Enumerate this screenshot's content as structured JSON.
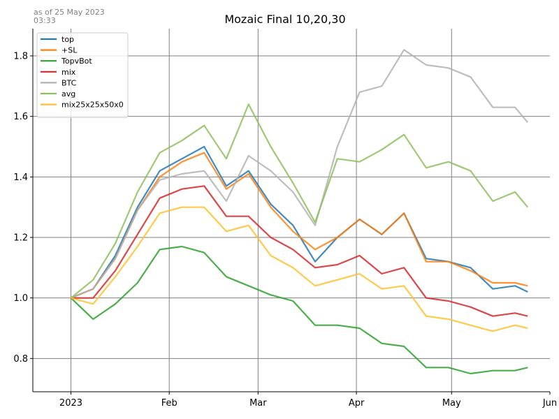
{
  "header": {
    "asof_line1": "as of 25 May 2023",
    "asof_line2": "03:33"
  },
  "chart_data": {
    "type": "line",
    "title": "Mozaic Final 10,20,30",
    "xlabel": "",
    "ylabel": "",
    "x_range": [
      "2022-12-20",
      "2023-06-01"
    ],
    "ylim": [
      0.69,
      1.89
    ],
    "y_ticks": [
      0.8,
      1.0,
      1.2,
      1.4,
      1.6,
      1.8
    ],
    "x_ticks": [
      {
        "date": "2023-01-01",
        "label": "2023"
      },
      {
        "date": "2023-02-01",
        "label": "Feb"
      },
      {
        "date": "2023-03-01",
        "label": "Mar"
      },
      {
        "date": "2023-04-01",
        "label": "Apr"
      },
      {
        "date": "2023-05-01",
        "label": "May"
      },
      {
        "date": "2023-06-01",
        "label": "Jun"
      }
    ],
    "grid": true,
    "legend_position": "top-left",
    "x": [
      "2023-01-01",
      "2023-01-08",
      "2023-01-15",
      "2023-01-22",
      "2023-01-29",
      "2023-02-05",
      "2023-02-12",
      "2023-02-19",
      "2023-02-26",
      "2023-03-05",
      "2023-03-12",
      "2023-03-19",
      "2023-03-26",
      "2023-04-02",
      "2023-04-09",
      "2023-04-16",
      "2023-04-23",
      "2023-04-30",
      "2023-05-07",
      "2023-05-14",
      "2023-05-21",
      "2023-05-25"
    ],
    "series": [
      {
        "name": "top",
        "color": "#1f77b4",
        "values": [
          1.0,
          1.03,
          1.14,
          1.3,
          1.42,
          1.46,
          1.5,
          1.37,
          1.42,
          1.31,
          1.24,
          1.12,
          1.2,
          1.26,
          1.21,
          1.28,
          1.13,
          1.12,
          1.1,
          1.03,
          1.04,
          1.02
        ]
      },
      {
        "name": "+SL",
        "color": "#ff7f0e",
        "values": [
          1.0,
          1.03,
          1.13,
          1.29,
          1.4,
          1.45,
          1.48,
          1.36,
          1.41,
          1.3,
          1.22,
          1.16,
          1.2,
          1.26,
          1.21,
          1.28,
          1.12,
          1.12,
          1.09,
          1.05,
          1.05,
          1.04
        ]
      },
      {
        "name": "TopvBot",
        "color": "#2ca02c",
        "values": [
          1.0,
          0.93,
          0.98,
          1.05,
          1.16,
          1.17,
          1.15,
          1.07,
          1.04,
          1.01,
          0.99,
          0.91,
          0.91,
          0.9,
          0.85,
          0.84,
          0.77,
          0.77,
          0.75,
          0.76,
          0.76,
          0.77
        ]
      },
      {
        "name": "mix",
        "color": "#d62728",
        "values": [
          1.0,
          1.0,
          1.09,
          1.21,
          1.33,
          1.36,
          1.37,
          1.27,
          1.27,
          1.2,
          1.16,
          1.1,
          1.11,
          1.14,
          1.08,
          1.1,
          1.0,
          0.99,
          0.97,
          0.94,
          0.95,
          0.94
        ]
      },
      {
        "name": "BTC",
        "color": "#b2b2b2",
        "values": [
          1.0,
          1.03,
          1.13,
          1.29,
          1.39,
          1.41,
          1.42,
          1.32,
          1.47,
          1.42,
          1.35,
          1.24,
          1.5,
          1.68,
          1.7,
          1.82,
          1.77,
          1.76,
          1.73,
          1.63,
          1.63,
          1.58
        ]
      },
      {
        "name": "avg",
        "color": "#8cbf5d",
        "values": [
          1.0,
          1.06,
          1.18,
          1.35,
          1.48,
          1.52,
          1.57,
          1.46,
          1.64,
          1.5,
          1.38,
          1.25,
          1.46,
          1.45,
          1.49,
          1.54,
          1.43,
          1.45,
          1.42,
          1.32,
          1.35,
          1.3
        ]
      },
      {
        "name": "mix25x25x50x0",
        "color": "#ffc12d",
        "values": [
          1.0,
          0.98,
          1.07,
          1.17,
          1.28,
          1.3,
          1.3,
          1.22,
          1.24,
          1.14,
          1.1,
          1.04,
          1.06,
          1.08,
          1.03,
          1.04,
          0.94,
          0.93,
          0.91,
          0.89,
          0.91,
          0.9
        ]
      }
    ]
  }
}
